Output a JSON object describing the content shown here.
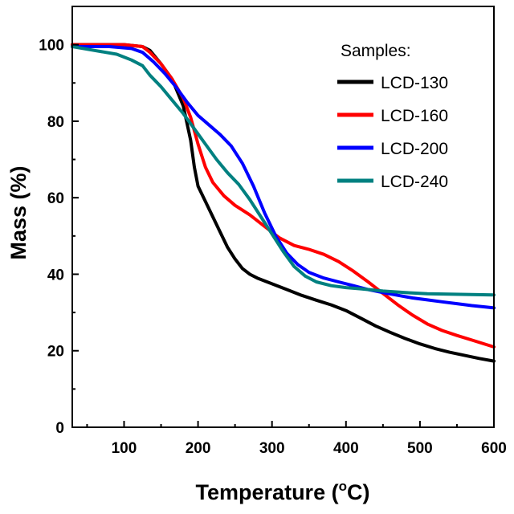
{
  "chart_data": {
    "type": "line",
    "xlabel": "Temperature (",
    "xlabel_sup": "o",
    "xlabel_unit": "C)",
    "ylabel": "Mass (%)",
    "xlim": [
      30,
      600
    ],
    "ylim": [
      0,
      110
    ],
    "xticks": [
      100,
      200,
      300,
      400,
      500,
      600
    ],
    "yticks": [
      0,
      20,
      40,
      60,
      80,
      100
    ],
    "xtick_labels": [
      "100",
      "200",
      "300",
      "400",
      "500",
      "600"
    ],
    "ytick_labels": [
      "0",
      "20",
      "40",
      "60",
      "80",
      "100"
    ],
    "grid": false,
    "legend": {
      "title": "Samples:",
      "position": "top-right"
    },
    "series": [
      {
        "name": "LCD-130",
        "color": "#000000",
        "points": [
          [
            30,
            100
          ],
          [
            100,
            100
          ],
          [
            125,
            99.5
          ],
          [
            135,
            98.5
          ],
          [
            150,
            95
          ],
          [
            165,
            91
          ],
          [
            180,
            84
          ],
          [
            190,
            75
          ],
          [
            195,
            68
          ],
          [
            200,
            63
          ],
          [
            210,
            59
          ],
          [
            220,
            55
          ],
          [
            230,
            51
          ],
          [
            240,
            47
          ],
          [
            250,
            44
          ],
          [
            260,
            41.5
          ],
          [
            270,
            40
          ],
          [
            280,
            39
          ],
          [
            300,
            37.5
          ],
          [
            320,
            36
          ],
          [
            340,
            34.5
          ],
          [
            360,
            33.2
          ],
          [
            380,
            32
          ],
          [
            400,
            30.5
          ],
          [
            420,
            28.5
          ],
          [
            440,
            26.5
          ],
          [
            460,
            24.8
          ],
          [
            480,
            23.2
          ],
          [
            500,
            21.8
          ],
          [
            520,
            20.6
          ],
          [
            540,
            19.6
          ],
          [
            560,
            18.8
          ],
          [
            580,
            18
          ],
          [
            600,
            17.3
          ]
        ]
      },
      {
        "name": "LCD-160",
        "color": "#ff0000",
        "points": [
          [
            30,
            100
          ],
          [
            100,
            100
          ],
          [
            125,
            99.5
          ],
          [
            135,
            98
          ],
          [
            150,
            95
          ],
          [
            165,
            91
          ],
          [
            180,
            86
          ],
          [
            190,
            81
          ],
          [
            200,
            74
          ],
          [
            210,
            68
          ],
          [
            220,
            64
          ],
          [
            235,
            60.5
          ],
          [
            250,
            58
          ],
          [
            270,
            55.5
          ],
          [
            290,
            52.5
          ],
          [
            310,
            49.5
          ],
          [
            330,
            47.5
          ],
          [
            350,
            46.5
          ],
          [
            370,
            45.2
          ],
          [
            390,
            43.3
          ],
          [
            410,
            40.8
          ],
          [
            430,
            38
          ],
          [
            450,
            35
          ],
          [
            470,
            32
          ],
          [
            490,
            29.3
          ],
          [
            510,
            27
          ],
          [
            530,
            25.3
          ],
          [
            550,
            24
          ],
          [
            570,
            22.8
          ],
          [
            590,
            21.6
          ],
          [
            600,
            21
          ]
        ]
      },
      {
        "name": "LCD-200",
        "color": "#0000ff",
        "points": [
          [
            30,
            99.5
          ],
          [
            80,
            99.5
          ],
          [
            110,
            99
          ],
          [
            125,
            98
          ],
          [
            140,
            95.5
          ],
          [
            155,
            92.5
          ],
          [
            170,
            89
          ],
          [
            185,
            85
          ],
          [
            200,
            81.5
          ],
          [
            215,
            79
          ],
          [
            230,
            76.5
          ],
          [
            245,
            73.5
          ],
          [
            260,
            69
          ],
          [
            275,
            63
          ],
          [
            290,
            56
          ],
          [
            305,
            50
          ],
          [
            320,
            45.5
          ],
          [
            335,
            42.5
          ],
          [
            350,
            40.5
          ],
          [
            370,
            39
          ],
          [
            390,
            38
          ],
          [
            410,
            37
          ],
          [
            430,
            36
          ],
          [
            450,
            35.2
          ],
          [
            470,
            34.5
          ],
          [
            490,
            33.8
          ],
          [
            510,
            33.3
          ],
          [
            530,
            32.8
          ],
          [
            550,
            32.3
          ],
          [
            570,
            31.8
          ],
          [
            590,
            31.4
          ],
          [
            600,
            31.2
          ]
        ]
      },
      {
        "name": "LCD-240",
        "color": "#008080",
        "points": [
          [
            30,
            99.5
          ],
          [
            60,
            98.5
          ],
          [
            90,
            97.5
          ],
          [
            110,
            96
          ],
          [
            125,
            94.5
          ],
          [
            135,
            92
          ],
          [
            150,
            89
          ],
          [
            165,
            85.5
          ],
          [
            180,
            82
          ],
          [
            195,
            78
          ],
          [
            210,
            74
          ],
          [
            225,
            70
          ],
          [
            240,
            66.5
          ],
          [
            255,
            63.5
          ],
          [
            270,
            59.5
          ],
          [
            285,
            55
          ],
          [
            300,
            50.5
          ],
          [
            315,
            46
          ],
          [
            330,
            42
          ],
          [
            345,
            39.5
          ],
          [
            360,
            38
          ],
          [
            380,
            37
          ],
          [
            400,
            36.5
          ],
          [
            420,
            36.2
          ],
          [
            450,
            35.6
          ],
          [
            480,
            35.2
          ],
          [
            510,
            34.9
          ],
          [
            540,
            34.8
          ],
          [
            570,
            34.7
          ],
          [
            600,
            34.6
          ]
        ]
      }
    ]
  }
}
